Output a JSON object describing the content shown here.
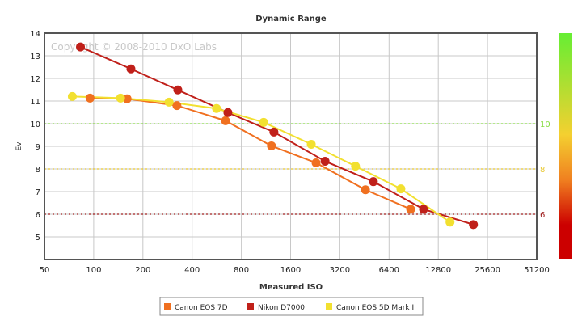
{
  "chart_data": {
    "type": "line",
    "title": "Dynamic Range",
    "xlabel": "Measured ISO",
    "ylabel": "Ev",
    "x_scale": "log2",
    "xlim": [
      50,
      51200
    ],
    "ylim": [
      4,
      14
    ],
    "x_ticks": [
      "50",
      "100",
      "200",
      "400",
      "800",
      "1600",
      "3200",
      "6400",
      "12800",
      "25600",
      "51200"
    ],
    "y_ticks": [
      "5",
      "6",
      "7",
      "8",
      "9",
      "10",
      "11",
      "12",
      "13",
      "14"
    ],
    "grid": true,
    "watermark": "Copyright © 2008-2010 DxO Labs",
    "reference_lines": [
      {
        "value": 10,
        "label": "10",
        "color": "#88dd44"
      },
      {
        "value": 8,
        "label": "8",
        "color": "#e8c830"
      },
      {
        "value": 6,
        "label": "6",
        "color": "#a02020"
      }
    ],
    "colorbar_colors": [
      "#66ee33",
      "#f4d030",
      "#f08020",
      "#cc0000"
    ],
    "legend_position": "bottom",
    "series": [
      {
        "name": "Canon EOS 7D",
        "color": "#f07020",
        "x": [
          95,
          160,
          323,
          640,
          1222,
          2290,
          4590,
          8680
        ],
        "y": [
          11.13,
          11.1,
          10.8,
          10.13,
          9.02,
          8.27,
          7.08,
          6.22
        ]
      },
      {
        "name": "Nikon D7000",
        "color": "#c0201a",
        "x": [
          83,
          169,
          327,
          662,
          1265,
          2600,
          5130,
          10400,
          21000
        ],
        "y": [
          13.39,
          12.42,
          11.49,
          10.49,
          9.63,
          8.34,
          7.44,
          6.22,
          5.54
        ]
      },
      {
        "name": "Canon EOS 5D Mark II",
        "color": "#f2e030",
        "x": [
          74,
          146,
          289,
          564,
          1094,
          2140,
          3990,
          7560,
          15100
        ],
        "y": [
          11.2,
          11.13,
          10.95,
          10.67,
          10.06,
          9.09,
          8.12,
          7.12,
          5.65
        ]
      }
    ]
  }
}
